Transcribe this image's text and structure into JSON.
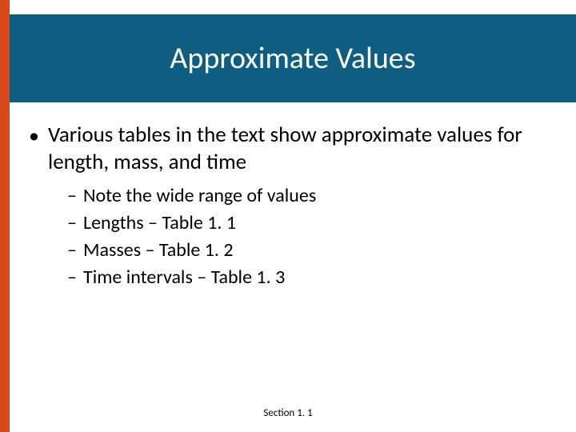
{
  "colors": {
    "accent": "#d84a1a",
    "header_bg": "#0e5e82",
    "title_color": "#ffffff",
    "text_color": "#000000",
    "background": "#ffffff"
  },
  "title": "Approximate Values",
  "bullet_main": "Various tables in the text show approximate values for length, mass, and time",
  "sub_items": [
    "Note the wide range of values",
    "Lengths – Table 1. 1",
    "Masses – Table 1. 2",
    "Time intervals – Table 1. 3"
  ],
  "footer": "Section 1. 1",
  "typography": {
    "title_fontsize": 38,
    "body_fontsize": 27,
    "sub_fontsize": 24,
    "footer_fontsize": 13
  }
}
